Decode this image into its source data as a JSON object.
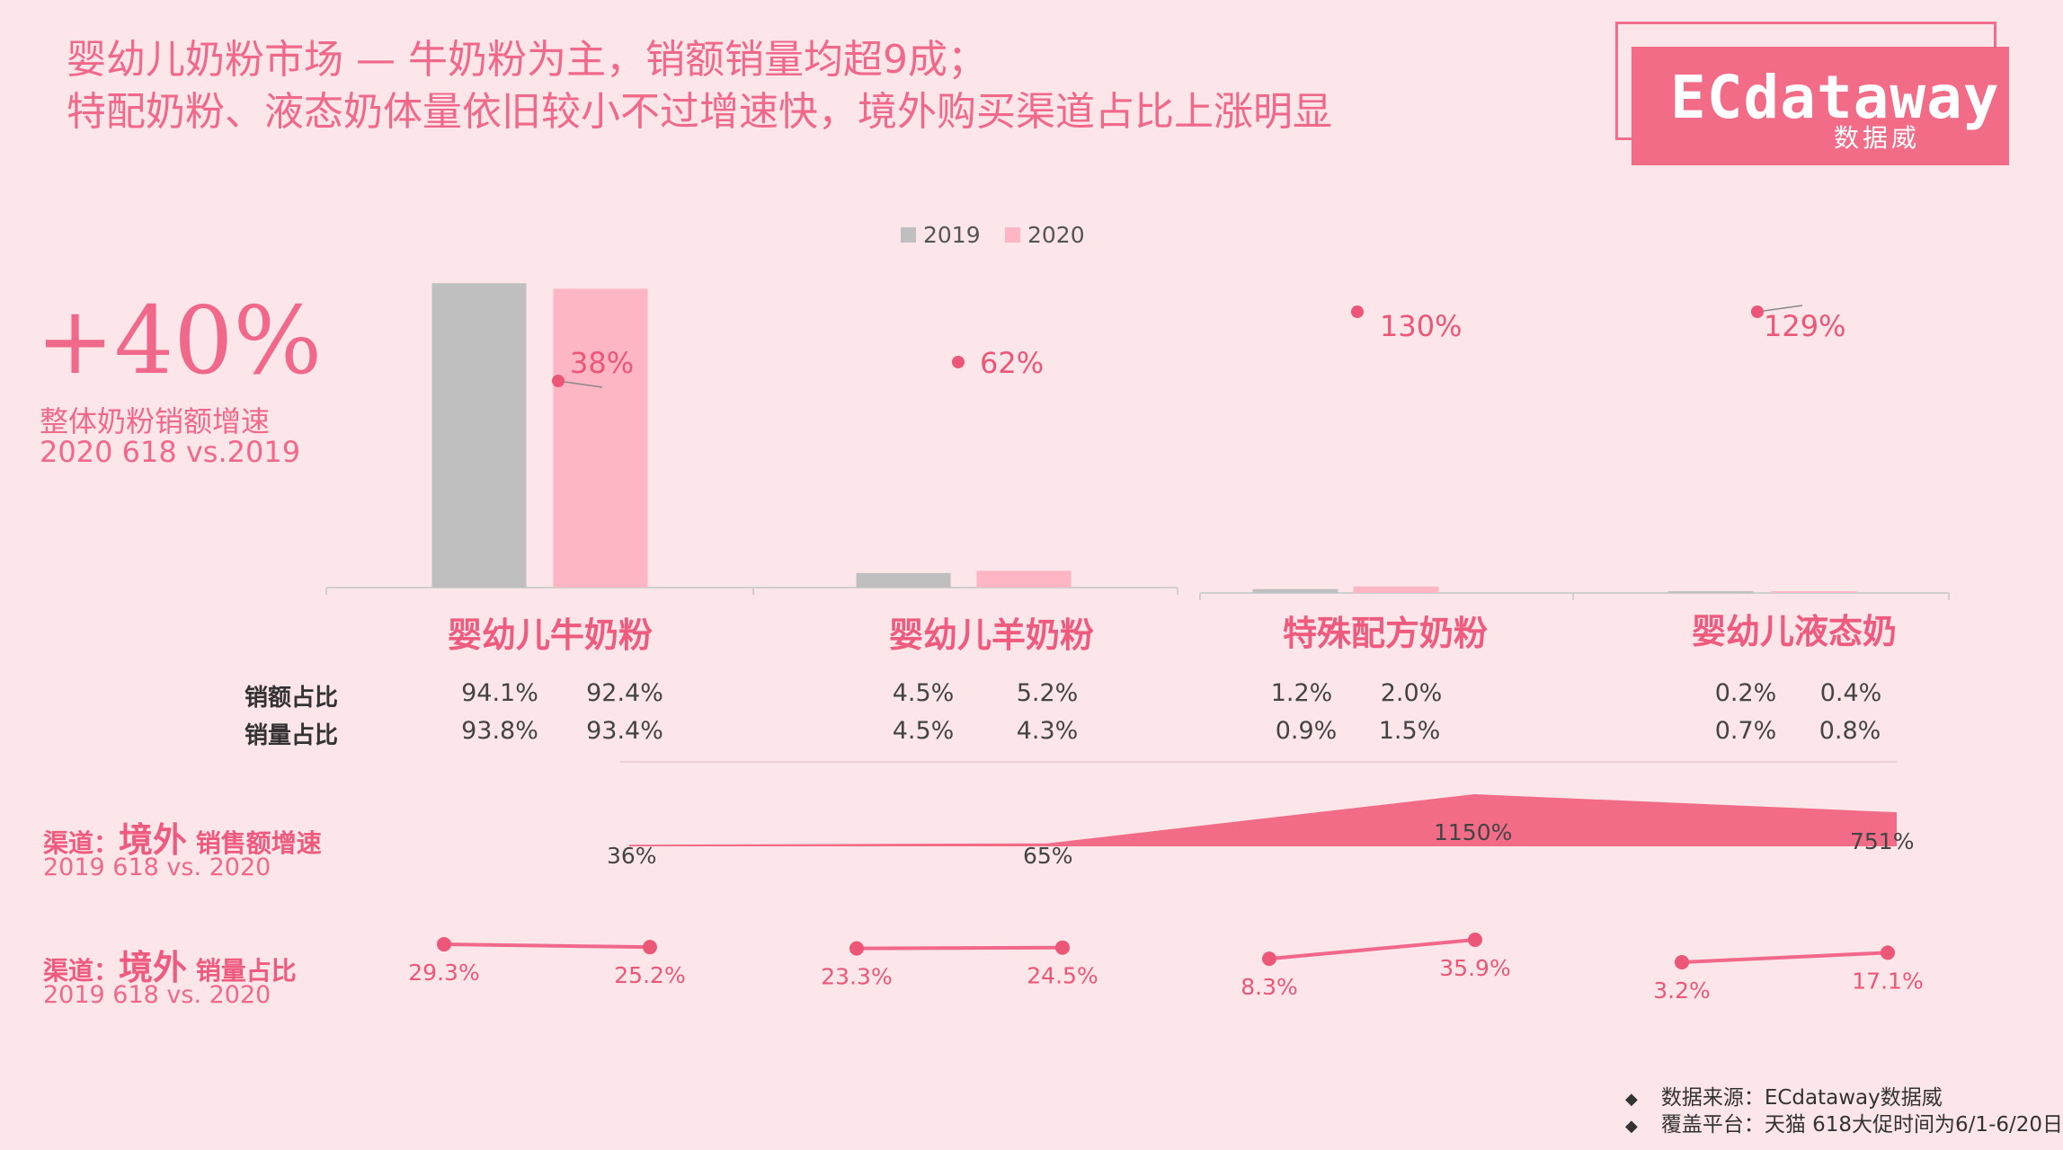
{
  "title_line1": "婴幼儿奶粉市场 — 牛奶粉为主，销额销量均超9成；",
  "title_line2": "特配奶粉、液态奶体量依旧较小不过增速快，境外购买渠道占比上涨明显",
  "logo": {
    "text": "ECdataway",
    "sub": "数据威",
    "color": "#f26b87"
  },
  "kpi": {
    "value": "+40%",
    "label": "整体奶粉销额增速",
    "period": "2020 618 vs.2019"
  },
  "colors": {
    "y2019": "#bfbfbf",
    "y2020": "#ffb6c4",
    "accent": "#f2688a",
    "dot": "#ec5777"
  },
  "chart_data": [
    {
      "type": "bar",
      "categories": [
        "婴幼儿牛奶粉",
        "婴幼儿羊奶粉",
        "特殊配方奶粉",
        "婴幼儿液态奶"
      ],
      "series": [
        {
          "name": "2019",
          "values": [
            94.1,
            4.5,
            1.2,
            0.2
          ]
        },
        {
          "name": "2020",
          "values": [
            92.4,
            5.2,
            2.0,
            0.4
          ]
        }
      ],
      "growth_labels": [
        "38%",
        "62%",
        "130%",
        "129%"
      ],
      "growth_values": [
        38,
        62,
        130,
        129
      ],
      "ylim": [
        0,
        100
      ]
    },
    {
      "type": "area",
      "label_main": "境外",
      "label_pre": "渠道：",
      "label_post": "销售额增速",
      "period": "2019 618 vs. 2020",
      "values": [
        36,
        65,
        1150,
        751
      ],
      "labels": [
        "36%",
        "65%",
        "1150%",
        "751%"
      ]
    },
    {
      "type": "line",
      "label_main": "境外",
      "label_pre": "渠道：",
      "label_post": "销量占比",
      "period": "2019 618 vs. 2020",
      "pairs": [
        {
          "values": [
            29.3,
            25.2
          ],
          "labels": [
            "29.3%",
            "25.2%"
          ]
        },
        {
          "values": [
            23.3,
            24.5
          ],
          "labels": [
            "23.3%",
            "24.5%"
          ]
        },
        {
          "values": [
            8.3,
            35.9
          ],
          "labels": [
            "8.3%",
            "35.9%"
          ]
        },
        {
          "values": [
            3.2,
            17.1
          ],
          "labels": [
            "3.2%",
            "17.1%"
          ]
        }
      ]
    }
  ],
  "table": {
    "rows": [
      {
        "label": "销额占比",
        "values": [
          "94.1%",
          "92.4%",
          "4.5%",
          "5.2%",
          "1.2%",
          "2.0%",
          "0.2%",
          "0.4%"
        ]
      },
      {
        "label": "销量占比",
        "values": [
          "93.8%",
          "93.4%",
          "4.5%",
          "4.3%",
          "0.9%",
          "1.5%",
          "0.7%",
          "0.8%"
        ]
      }
    ]
  },
  "footer": {
    "source": "数据来源：ECdataway数据威",
    "platform": "覆盖平台：天猫  618大促时间为6/1-6/20日"
  }
}
